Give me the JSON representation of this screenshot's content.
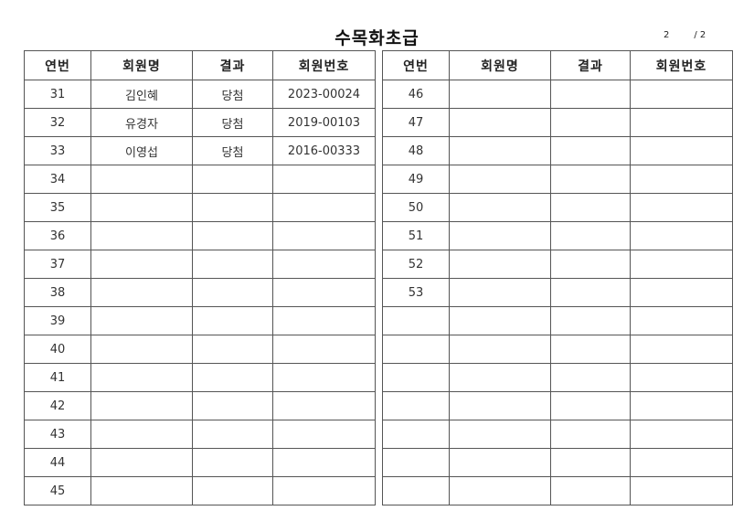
{
  "title": "수목화초급",
  "page": {
    "current": "2",
    "total": "/ 2"
  },
  "columns": [
    "연번",
    "회원명",
    "결과",
    "회원번호"
  ],
  "left_table": [
    [
      "31",
      "김인혜",
      "당첨",
      "2023-00024"
    ],
    [
      "32",
      "유경자",
      "당첨",
      "2019-00103"
    ],
    [
      "33",
      "이영섭",
      "당첨",
      "2016-00333"
    ],
    [
      "34",
      "",
      "",
      ""
    ],
    [
      "35",
      "",
      "",
      ""
    ],
    [
      "36",
      "",
      "",
      ""
    ],
    [
      "37",
      "",
      "",
      ""
    ],
    [
      "38",
      "",
      "",
      ""
    ],
    [
      "39",
      "",
      "",
      ""
    ],
    [
      "40",
      "",
      "",
      ""
    ],
    [
      "41",
      "",
      "",
      ""
    ],
    [
      "42",
      "",
      "",
      ""
    ],
    [
      "43",
      "",
      "",
      ""
    ],
    [
      "44",
      "",
      "",
      ""
    ],
    [
      "45",
      "",
      "",
      ""
    ]
  ],
  "right_table": [
    [
      "46",
      "",
      "",
      ""
    ],
    [
      "47",
      "",
      "",
      ""
    ],
    [
      "48",
      "",
      "",
      ""
    ],
    [
      "49",
      "",
      "",
      ""
    ],
    [
      "50",
      "",
      "",
      ""
    ],
    [
      "51",
      "",
      "",
      ""
    ],
    [
      "52",
      "",
      "",
      ""
    ],
    [
      "53",
      "",
      "",
      ""
    ],
    [
      "",
      "",
      "",
      ""
    ],
    [
      "",
      "",
      "",
      ""
    ],
    [
      "",
      "",
      "",
      ""
    ],
    [
      "",
      "",
      "",
      ""
    ],
    [
      "",
      "",
      "",
      ""
    ],
    [
      "",
      "",
      "",
      ""
    ],
    [
      "",
      "",
      "",
      ""
    ]
  ]
}
